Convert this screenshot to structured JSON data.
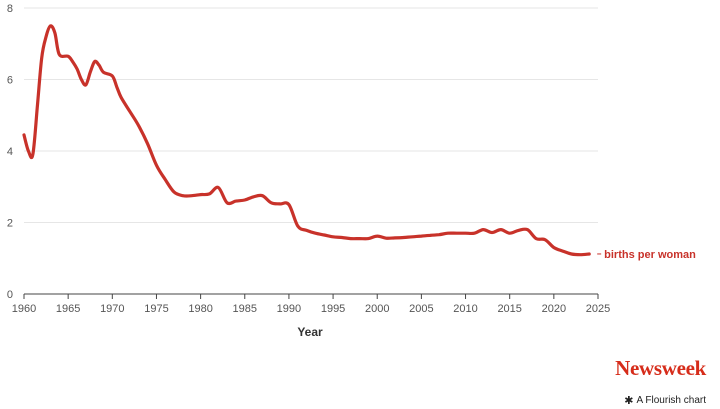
{
  "chart_data": {
    "type": "line",
    "title": "",
    "xlabel": "Year",
    "ylabel": "",
    "xlim": [
      1960,
      2025
    ],
    "ylim": [
      0,
      8
    ],
    "x_ticks": [
      1960,
      1965,
      1970,
      1975,
      1980,
      1985,
      1990,
      1995,
      2000,
      2005,
      2010,
      2015,
      2020,
      2025
    ],
    "y_ticks": [
      0,
      2,
      4,
      6,
      8
    ],
    "grid": true,
    "series": [
      {
        "name": "births per woman",
        "color": "#c8322a",
        "x": [
          1960,
          1960.5,
          1961,
          1961.5,
          1962,
          1962.5,
          1963,
          1963.5,
          1964,
          1965,
          1965.5,
          1966,
          1966.5,
          1967,
          1967.5,
          1968,
          1968.5,
          1969,
          1970,
          1970.5,
          1971,
          1972,
          1973,
          1974,
          1975,
          1976,
          1977,
          1978,
          1979,
          1980,
          1981,
          1982,
          1983,
          1984,
          1985,
          1986,
          1987,
          1988,
          1989,
          1990,
          1991,
          1992,
          1993,
          1994,
          1995,
          1996,
          1997,
          1998,
          1999,
          2000,
          2001,
          2002,
          2003,
          2004,
          2005,
          2006,
          2007,
          2008,
          2009,
          2010,
          2011,
          2012,
          2013,
          2014,
          2015,
          2016,
          2017,
          2018,
          2019,
          2020,
          2021,
          2022,
          2023,
          2024
        ],
        "values": [
          4.45,
          4.0,
          3.9,
          5.2,
          6.6,
          7.2,
          7.5,
          7.3,
          6.7,
          6.65,
          6.5,
          6.3,
          6.0,
          5.85,
          6.2,
          6.5,
          6.4,
          6.2,
          6.1,
          5.8,
          5.5,
          5.1,
          4.7,
          4.2,
          3.6,
          3.2,
          2.85,
          2.75,
          2.75,
          2.78,
          2.8,
          2.98,
          2.55,
          2.6,
          2.63,
          2.72,
          2.75,
          2.55,
          2.52,
          2.5,
          1.9,
          1.78,
          1.7,
          1.65,
          1.6,
          1.58,
          1.55,
          1.55,
          1.55,
          1.62,
          1.56,
          1.57,
          1.58,
          1.6,
          1.62,
          1.64,
          1.66,
          1.7,
          1.7,
          1.7,
          1.7,
          1.8,
          1.72,
          1.8,
          1.7,
          1.78,
          1.8,
          1.55,
          1.52,
          1.3,
          1.2,
          1.12,
          1.1,
          1.12
        ]
      }
    ]
  },
  "branding": {
    "logo_text": "Newsweek",
    "logo_color": "#d62c1a",
    "credit_icon": "asterisk-icon",
    "credit_glyph": "✱",
    "credit_text": "A Flourish chart"
  },
  "style": {
    "grid_color": "#e6e6e6",
    "axis_color": "#444444"
  }
}
